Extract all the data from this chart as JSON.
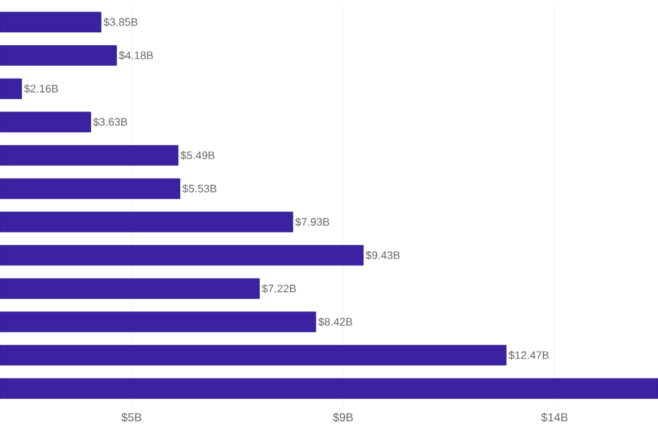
{
  "chart_data": {
    "type": "bar",
    "orientation": "horizontal",
    "categories": [
      null,
      null,
      null,
      null,
      null,
      null,
      null,
      null,
      null,
      null,
      null,
      null
    ],
    "values": [
      3.85,
      4.18,
      2.16,
      3.63,
      5.49,
      5.53,
      7.93,
      9.43,
      7.22,
      8.42,
      12.47,
      15.7
    ],
    "value_labels": [
      "$3.85B",
      "$4.18B",
      "$2.16B",
      "$3.63B",
      "$5.49B",
      "$5.53B",
      "$7.93B",
      "$9.43B",
      "$7.22B",
      "$8.42B",
      "$12.47B",
      null
    ],
    "color": "#3b22a3",
    "xlim": [
      1.7,
      15.7
    ],
    "xticks": [
      {
        "value": 4.5,
        "label": "$5B"
      },
      {
        "value": 9,
        "label": "$9B"
      },
      {
        "value": 13.5,
        "label": "$14B"
      }
    ],
    "grid": "x"
  }
}
